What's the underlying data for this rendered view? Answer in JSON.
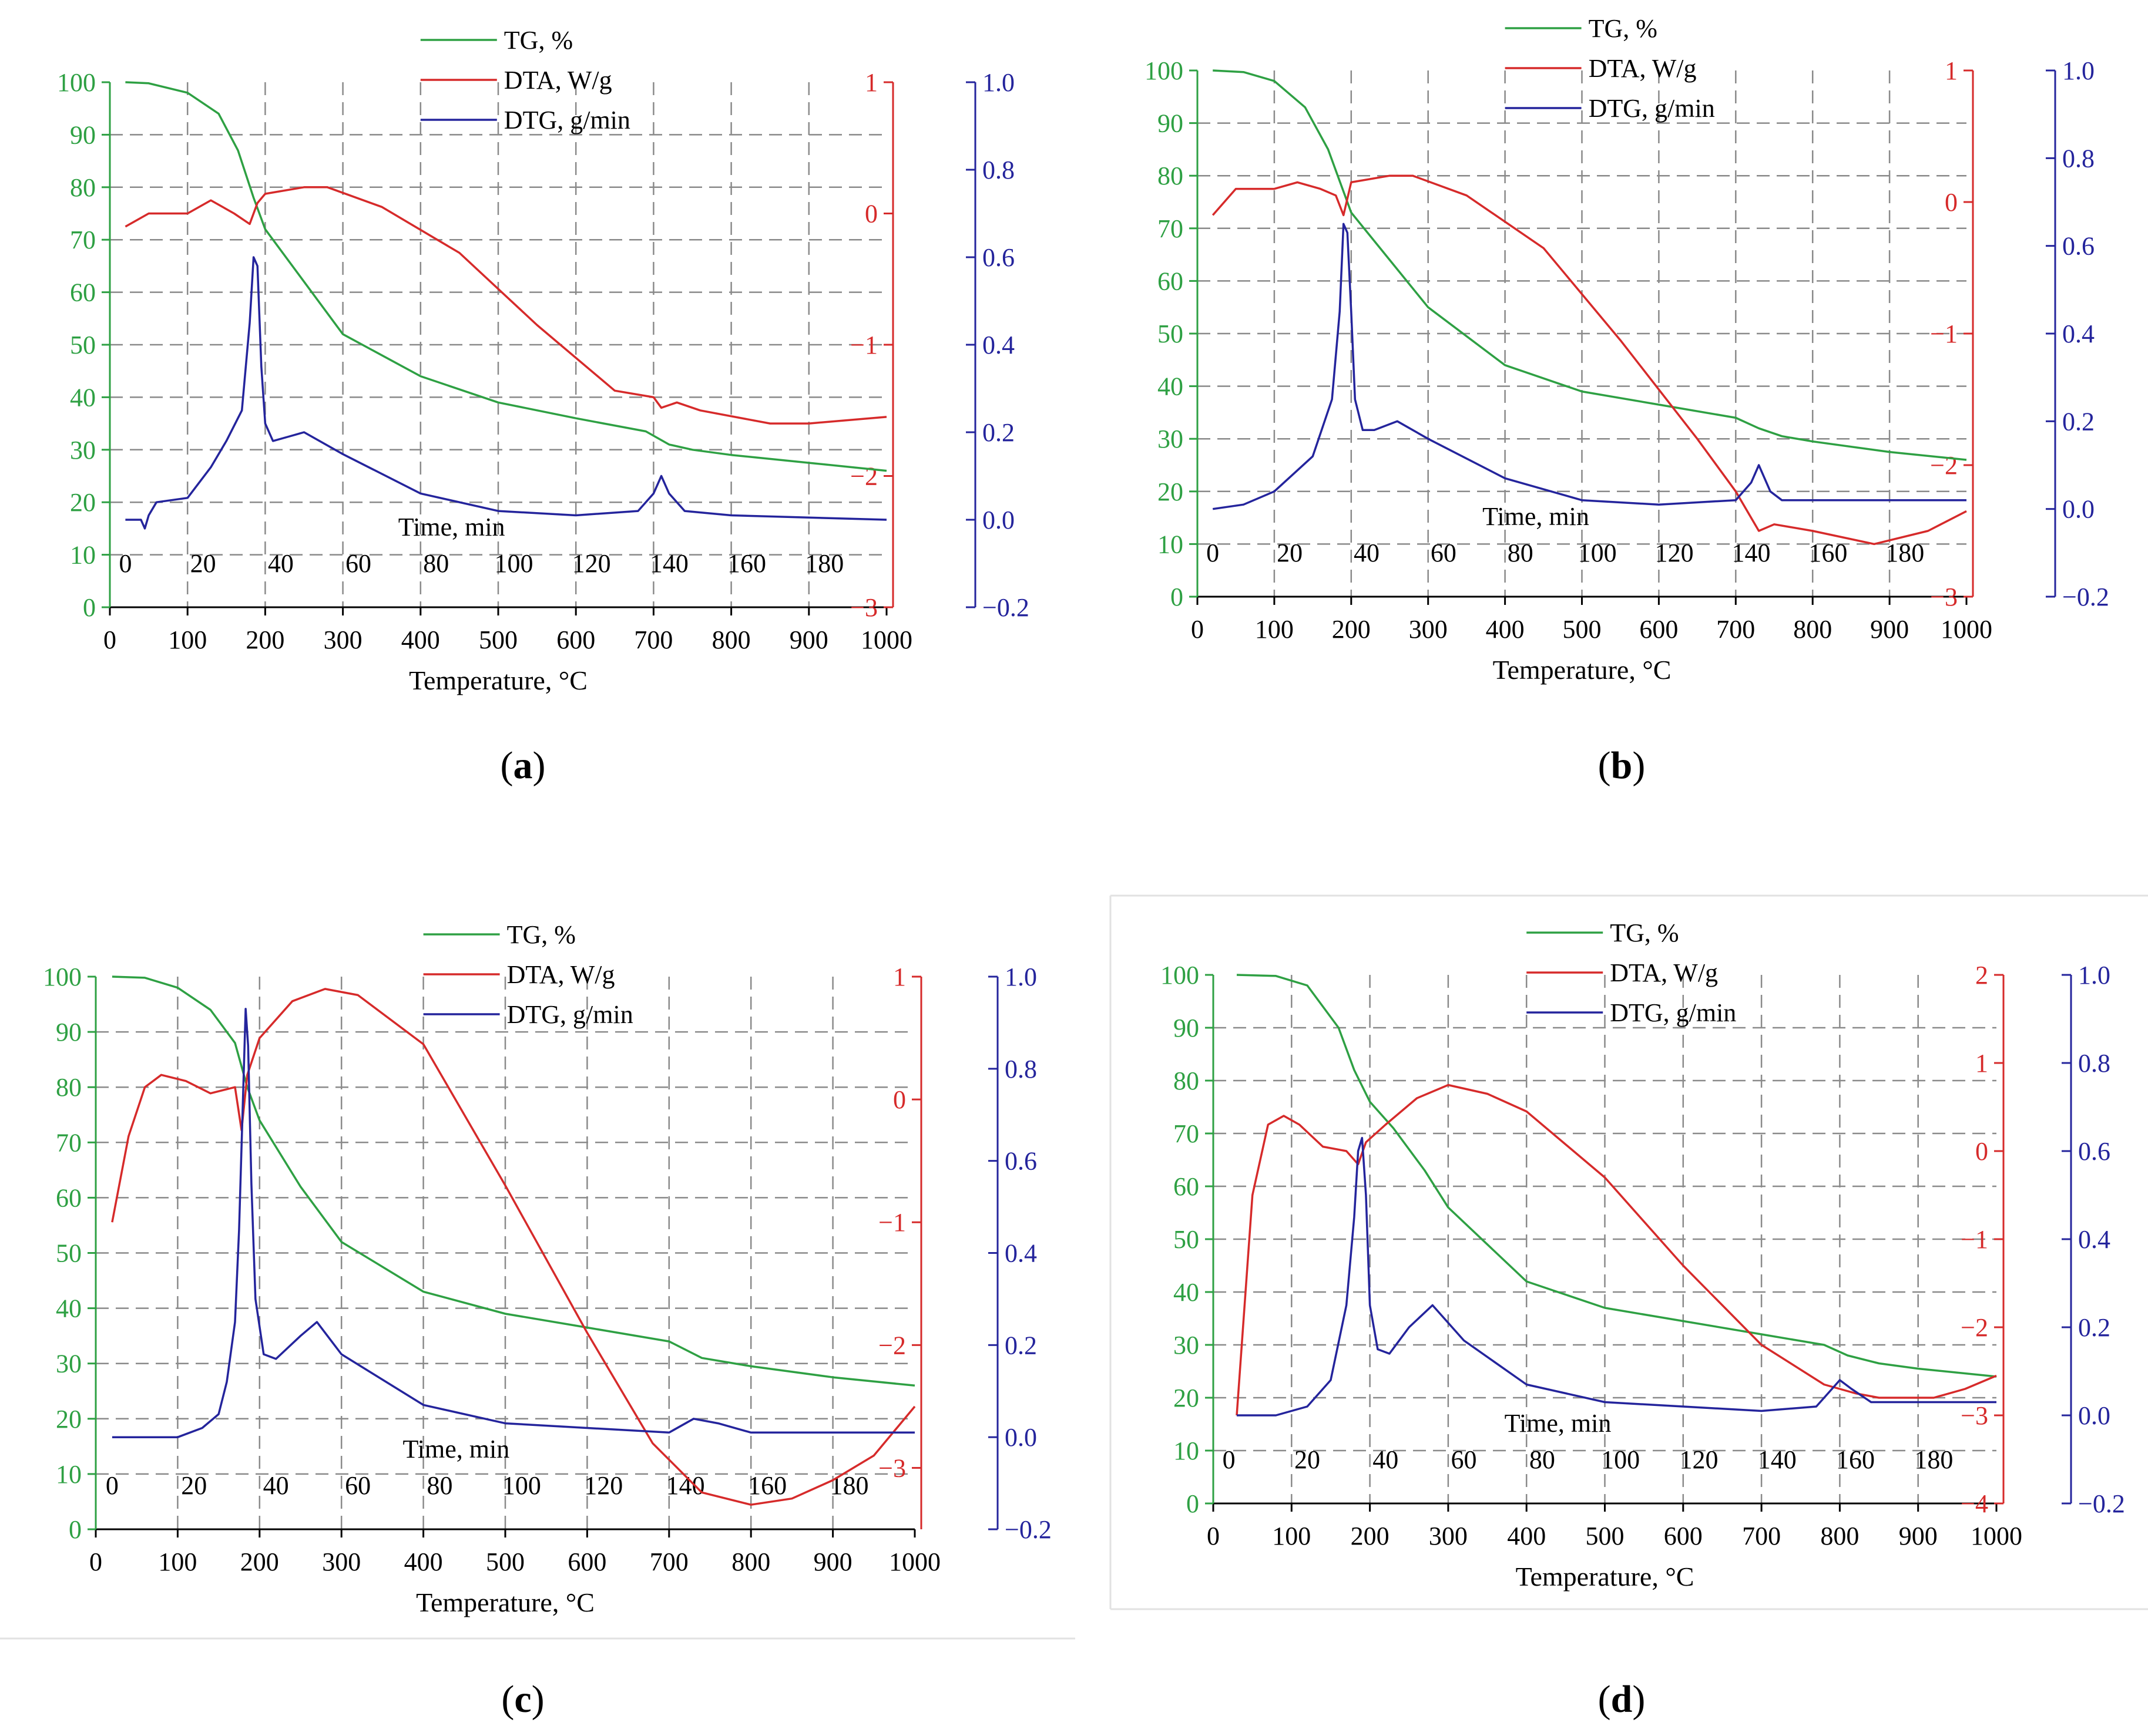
{
  "figure": {
    "panel_labels": [
      "a",
      "b",
      "c",
      "d"
    ],
    "colors": {
      "tg": "#2ea043",
      "dta": "#d62a2a",
      "dtg": "#24249c",
      "grid": "#8a8a8a",
      "axis": "#000000"
    }
  },
  "chart_data": [
    {
      "id": "a",
      "caption": "a",
      "type": "line",
      "xlabel": "Temperature, °C",
      "xlim": [
        0,
        1000
      ],
      "xticks": [
        "0",
        "100",
        "200",
        "300",
        "400",
        "500",
        "600",
        "700",
        "800",
        "900",
        "1000"
      ],
      "time_label": "Time, min",
      "time_ticks": [
        "0",
        "20",
        "40",
        "60",
        "80",
        "100",
        "120",
        "140",
        "160",
        "180"
      ],
      "legend": [
        {
          "series": "tg",
          "label": "TG, %"
        },
        {
          "series": "dta",
          "label": "DTA, W/g"
        },
        {
          "series": "dtg",
          "label": "DTG, g/min"
        }
      ],
      "y_tg": {
        "lim": [
          0,
          100
        ],
        "ticks": [
          "0",
          "10",
          "20",
          "30",
          "40",
          "50",
          "60",
          "70",
          "80",
          "90",
          "100"
        ]
      },
      "y_dta": {
        "lim": [
          -3,
          1
        ],
        "ticks": [
          "−3",
          "−2",
          "−1",
          "0",
          "1"
        ]
      },
      "y_dtg": {
        "lim": [
          -0.2,
          1.0
        ],
        "ticks": [
          "−0.2",
          "0.0",
          "0.2",
          "0.4",
          "0.6",
          "0.8",
          "1.0"
        ]
      },
      "series": [
        {
          "key": "tg",
          "name": "TG, %",
          "axis": "tg",
          "x": [
            20,
            50,
            100,
            140,
            165,
            185,
            200,
            250,
            300,
            400,
            500,
            600,
            690,
            720,
            750,
            800,
            900,
            1000
          ],
          "y": [
            100,
            99.8,
            98,
            94,
            87,
            78,
            72,
            62,
            52,
            44,
            39,
            36,
            33.5,
            31,
            30,
            29,
            27.5,
            26
          ]
        },
        {
          "key": "dta",
          "name": "DTA, W/g",
          "axis": "dta",
          "x": [
            20,
            50,
            100,
            130,
            160,
            180,
            190,
            200,
            250,
            280,
            350,
            450,
            550,
            650,
            700,
            710,
            730,
            760,
            850,
            900,
            1000
          ],
          "y": [
            -0.1,
            0.0,
            0.0,
            0.1,
            0.0,
            -0.08,
            0.08,
            0.15,
            0.2,
            0.2,
            0.05,
            -0.3,
            -0.85,
            -1.35,
            -1.4,
            -1.48,
            -1.44,
            -1.5,
            -1.6,
            -1.6,
            -1.55
          ]
        },
        {
          "key": "dtg",
          "name": "DTG, g/min",
          "axis": "dtg",
          "x": [
            20,
            40,
            45,
            50,
            60,
            100,
            130,
            150,
            170,
            180,
            185,
            190,
            195,
            200,
            210,
            230,
            250,
            300,
            400,
            500,
            600,
            680,
            700,
            710,
            720,
            740,
            800,
            1000
          ],
          "y": [
            0.0,
            0.0,
            -0.02,
            0.01,
            0.04,
            0.05,
            0.12,
            0.18,
            0.25,
            0.45,
            0.6,
            0.58,
            0.35,
            0.22,
            0.18,
            0.19,
            0.2,
            0.15,
            0.06,
            0.02,
            0.01,
            0.02,
            0.06,
            0.1,
            0.06,
            0.02,
            0.01,
            0.0
          ]
        }
      ]
    },
    {
      "id": "b",
      "caption": "b",
      "type": "line",
      "xlabel": "Temperature, °C",
      "xlim": [
        0,
        1000
      ],
      "xticks": [
        "0",
        "100",
        "200",
        "300",
        "400",
        "500",
        "600",
        "700",
        "800",
        "900",
        "1000"
      ],
      "time_label": "Time, min",
      "time_ticks": [
        "0",
        "20",
        "40",
        "60",
        "80",
        "100",
        "120",
        "140",
        "160",
        "180"
      ],
      "legend": [
        {
          "series": "tg",
          "label": "TG, %"
        },
        {
          "series": "dta",
          "label": "DTA, W/g"
        },
        {
          "series": "dtg",
          "label": "DTG, g/min"
        }
      ],
      "y_tg": {
        "lim": [
          0,
          100
        ],
        "ticks": [
          "0",
          "10",
          "20",
          "30",
          "40",
          "50",
          "60",
          "70",
          "80",
          "90",
          "100"
        ]
      },
      "y_dta": {
        "lim": [
          -3,
          1
        ],
        "ticks": [
          "−3",
          "−2",
          "−1",
          "0",
          "1"
        ]
      },
      "y_dtg": {
        "lim": [
          -0.2,
          1.0
        ],
        "ticks": [
          "−0.2",
          "0.0",
          "0.2",
          "0.4",
          "0.6",
          "0.8",
          "1.0"
        ]
      },
      "series": [
        {
          "key": "tg",
          "name": "TG, %",
          "axis": "tg",
          "x": [
            20,
            60,
            100,
            140,
            170,
            190,
            200,
            250,
            300,
            400,
            500,
            600,
            700,
            730,
            760,
            800,
            900,
            1000
          ],
          "y": [
            100,
            99.7,
            98,
            93,
            85,
            77,
            73,
            64,
            55,
            44,
            39,
            36.5,
            34,
            32,
            30.5,
            29.5,
            27.5,
            26
          ]
        },
        {
          "key": "dta",
          "name": "DTA, W/g",
          "axis": "dta",
          "x": [
            20,
            50,
            100,
            130,
            160,
            180,
            190,
            200,
            250,
            280,
            350,
            450,
            550,
            650,
            700,
            730,
            750,
            800,
            880,
            950,
            1000
          ],
          "y": [
            -0.1,
            0.1,
            0.1,
            0.15,
            0.1,
            0.05,
            -0.1,
            0.15,
            0.2,
            0.2,
            0.05,
            -0.35,
            -1.05,
            -1.8,
            -2.2,
            -2.5,
            -2.45,
            -2.5,
            -2.6,
            -2.5,
            -2.35
          ]
        },
        {
          "key": "dtg",
          "name": "DTG, g/min",
          "axis": "dtg",
          "x": [
            20,
            60,
            100,
            150,
            175,
            185,
            190,
            195,
            200,
            205,
            215,
            230,
            260,
            300,
            400,
            500,
            600,
            700,
            720,
            730,
            745,
            760,
            800,
            1000
          ],
          "y": [
            0.0,
            0.01,
            0.04,
            0.12,
            0.25,
            0.45,
            0.65,
            0.63,
            0.45,
            0.25,
            0.18,
            0.18,
            0.2,
            0.16,
            0.07,
            0.02,
            0.01,
            0.02,
            0.06,
            0.1,
            0.04,
            0.02,
            0.02,
            0.02
          ]
        }
      ]
    },
    {
      "id": "c",
      "caption": "c",
      "type": "line",
      "xlabel": "Temperature, °C",
      "xlim": [
        0,
        1000
      ],
      "xticks": [
        "0",
        "100",
        "200",
        "300",
        "400",
        "500",
        "600",
        "700",
        "800",
        "900",
        "1000"
      ],
      "time_label": "Time, min",
      "time_ticks": [
        "0",
        "20",
        "40",
        "60",
        "80",
        "100",
        "120",
        "140",
        "160",
        "180"
      ],
      "legend": [
        {
          "series": "tg",
          "label": "TG, %"
        },
        {
          "series": "dta",
          "label": "DTA, W/g"
        },
        {
          "series": "dtg",
          "label": "DTG, g/min"
        }
      ],
      "y_tg": {
        "lim": [
          0,
          100
        ],
        "ticks": [
          "0",
          "10",
          "20",
          "30",
          "40",
          "50",
          "60",
          "70",
          "80",
          "90",
          "100"
        ]
      },
      "y_dta": {
        "lim": [
          -3.5,
          1
        ],
        "ticks": [
          "−3",
          "−2",
          "−1",
          "0",
          "1"
        ]
      },
      "y_dtg": {
        "lim": [
          -0.2,
          1.0
        ],
        "ticks": [
          "−0.2",
          "0.0",
          "0.2",
          "0.4",
          "0.6",
          "0.8",
          "1.0"
        ]
      },
      "series": [
        {
          "key": "tg",
          "name": "TG, %",
          "axis": "tg",
          "x": [
            20,
            60,
            100,
            140,
            170,
            185,
            200,
            250,
            300,
            400,
            500,
            600,
            700,
            740,
            800,
            900,
            1000
          ],
          "y": [
            100,
            99.8,
            98,
            94,
            88,
            80,
            74,
            62,
            52,
            43,
            39,
            36.5,
            34,
            31,
            29.5,
            27.5,
            26
          ]
        },
        {
          "key": "dta",
          "name": "DTA, W/g",
          "axis": "dta",
          "x": [
            20,
            40,
            60,
            80,
            110,
            140,
            170,
            178,
            185,
            200,
            240,
            280,
            320,
            400,
            500,
            600,
            680,
            740,
            800,
            850,
            900,
            950,
            1000
          ],
          "y": [
            -1.0,
            -0.3,
            0.1,
            0.2,
            0.15,
            0.05,
            0.1,
            -0.25,
            0.2,
            0.5,
            0.8,
            0.9,
            0.85,
            0.45,
            -0.7,
            -1.9,
            -2.8,
            -3.2,
            -3.3,
            -3.25,
            -3.1,
            -2.9,
            -2.5
          ]
        },
        {
          "key": "dtg",
          "name": "DTG, g/min",
          "axis": "dtg",
          "x": [
            20,
            60,
            100,
            130,
            150,
            160,
            170,
            175,
            180,
            183,
            186,
            190,
            195,
            205,
            220,
            250,
            270,
            300,
            400,
            500,
            600,
            700,
            730,
            760,
            800,
            1000
          ],
          "y": [
            0.0,
            0.0,
            0.0,
            0.02,
            0.05,
            0.12,
            0.25,
            0.45,
            0.75,
            0.93,
            0.85,
            0.55,
            0.3,
            0.18,
            0.17,
            0.22,
            0.25,
            0.18,
            0.07,
            0.03,
            0.02,
            0.01,
            0.04,
            0.03,
            0.01,
            0.01
          ]
        }
      ]
    },
    {
      "id": "d",
      "caption": "d",
      "type": "line",
      "xlabel": "Temperature, °C",
      "xlim": [
        0,
        1000
      ],
      "xticks": [
        "0",
        "100",
        "200",
        "300",
        "400",
        "500",
        "600",
        "700",
        "800",
        "900",
        "1000"
      ],
      "time_label": "Time, min",
      "time_ticks": [
        "0",
        "20",
        "40",
        "60",
        "80",
        "100",
        "120",
        "140",
        "160",
        "180"
      ],
      "legend": [
        {
          "series": "tg",
          "label": "TG, %"
        },
        {
          "series": "dta",
          "label": "DTA, W/g"
        },
        {
          "series": "dtg",
          "label": "DTG, g/min"
        }
      ],
      "y_tg": {
        "lim": [
          0,
          100
        ],
        "ticks": [
          "0",
          "10",
          "20",
          "30",
          "40",
          "50",
          "60",
          "70",
          "80",
          "90",
          "100"
        ]
      },
      "y_dta": {
        "lim": [
          -4,
          2
        ],
        "ticks": [
          "−4",
          "−3",
          "−2",
          "−1",
          "0",
          "1",
          "2"
        ]
      },
      "y_dtg": {
        "lim": [
          -0.2,
          1.0
        ],
        "ticks": [
          "−0.2",
          "0.0",
          "0.2",
          "0.4",
          "0.6",
          "0.8",
          "1.0"
        ]
      },
      "series": [
        {
          "key": "tg",
          "name": "TG, %",
          "axis": "tg",
          "x": [
            30,
            80,
            120,
            160,
            180,
            200,
            230,
            270,
            300,
            400,
            500,
            600,
            700,
            780,
            810,
            850,
            900,
            1000
          ],
          "y": [
            100,
            99.8,
            98,
            90,
            82,
            76,
            71,
            63,
            56,
            42,
            37,
            34.5,
            32,
            30,
            28,
            26.5,
            25.5,
            24
          ]
        },
        {
          "key": "dta",
          "name": "DTA, W/g",
          "axis": "dta",
          "x": [
            30,
            50,
            70,
            90,
            110,
            140,
            170,
            185,
            195,
            220,
            260,
            300,
            350,
            400,
            500,
            600,
            700,
            780,
            820,
            850,
            880,
            920,
            960,
            1000
          ],
          "y": [
            -3.0,
            -0.5,
            0.3,
            0.4,
            0.3,
            0.05,
            0.0,
            -0.15,
            0.1,
            0.3,
            0.6,
            0.75,
            0.65,
            0.45,
            -0.3,
            -1.3,
            -2.2,
            -2.65,
            -2.75,
            -2.8,
            -2.8,
            -2.8,
            -2.7,
            -2.55
          ]
        },
        {
          "key": "dtg",
          "name": "DTG, g/min",
          "axis": "dtg",
          "x": [
            30,
            80,
            120,
            150,
            170,
            180,
            185,
            190,
            195,
            200,
            210,
            225,
            250,
            280,
            320,
            400,
            500,
            600,
            700,
            770,
            790,
            800,
            815,
            840,
            1000
          ],
          "y": [
            0.0,
            0.0,
            0.02,
            0.08,
            0.25,
            0.45,
            0.6,
            0.63,
            0.5,
            0.25,
            0.15,
            0.14,
            0.2,
            0.25,
            0.17,
            0.07,
            0.03,
            0.02,
            0.01,
            0.02,
            0.06,
            0.08,
            0.06,
            0.03,
            0.03
          ]
        }
      ]
    }
  ]
}
